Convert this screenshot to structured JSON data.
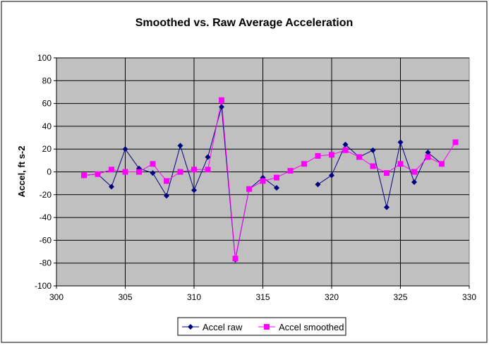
{
  "chart_data": {
    "type": "line",
    "title": "Smoothed vs. Raw Average Acceleration",
    "xlabel": "",
    "ylabel": "Accel, ft s-2",
    "xlim": [
      300,
      330
    ],
    "ylim": [
      -100,
      100
    ],
    "xticks": [
      300,
      305,
      310,
      315,
      320,
      325,
      330
    ],
    "yticks": [
      -100,
      -80,
      -60,
      -40,
      -20,
      0,
      20,
      40,
      60,
      80,
      100
    ],
    "grid": true,
    "legend_position": "bottom",
    "x": [
      302,
      303,
      304,
      305,
      306,
      307,
      308,
      309,
      310,
      311,
      312,
      313,
      314,
      315,
      316,
      317,
      318,
      319,
      320,
      321,
      322,
      323,
      324,
      325,
      326,
      327,
      328,
      329
    ],
    "series": [
      {
        "name": "Accel raw",
        "color": "#000080",
        "marker": "diamond",
        "values": [
          -3,
          -2,
          -13,
          20,
          3,
          -1,
          -21,
          23,
          -16,
          13,
          57,
          -77,
          -15,
          -5,
          -14,
          null,
          null,
          -11,
          -3,
          24,
          13,
          19,
          -31,
          26,
          -9,
          17,
          7,
          null
        ]
      },
      {
        "name": "Accel smoothed",
        "color": "#FF00FF",
        "marker": "square",
        "values": [
          -3,
          -2,
          2,
          0,
          0,
          7,
          -8,
          0,
          2,
          2,
          63,
          -76,
          -15,
          -8,
          -5,
          1,
          7,
          14,
          15,
          19,
          13,
          5,
          -1,
          7,
          0,
          13,
          7,
          26
        ]
      }
    ]
  }
}
